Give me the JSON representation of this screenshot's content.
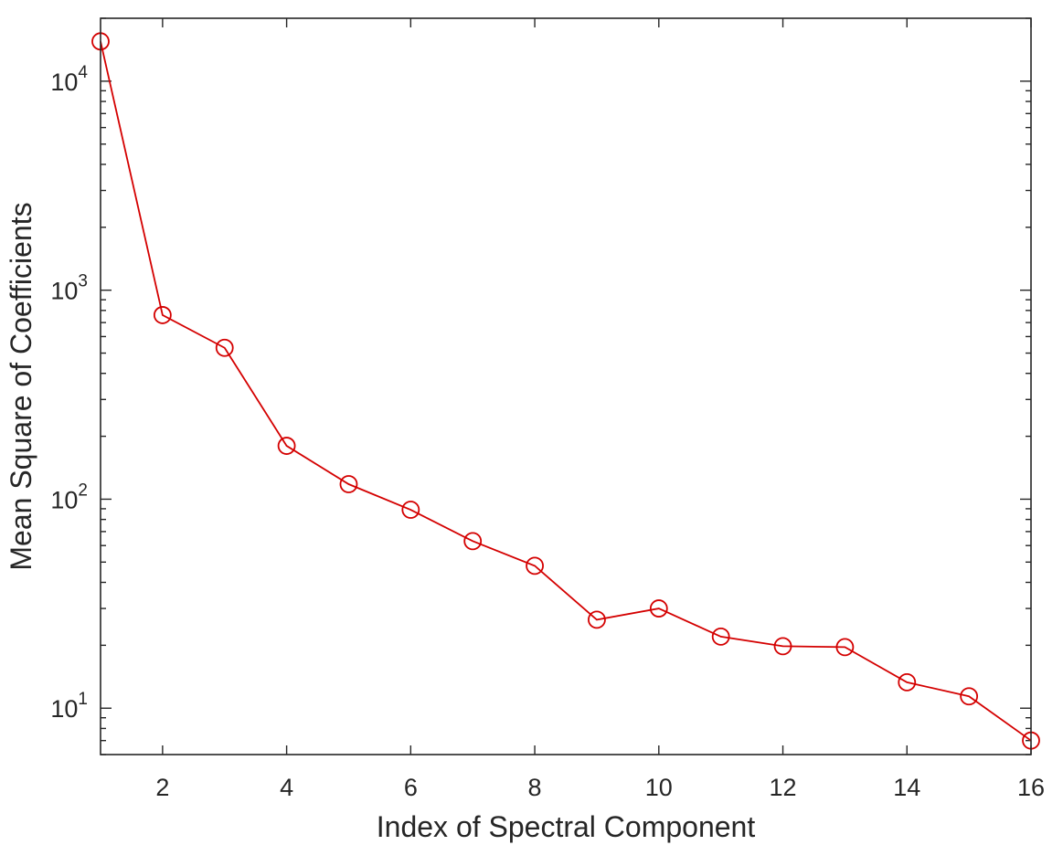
{
  "chart_data": {
    "type": "line",
    "title": "",
    "xlabel": "Index of Spectral Component",
    "ylabel": "Mean Square of Coefficients",
    "xlim": [
      1,
      16
    ],
    "ylim": [
      6,
      20000
    ],
    "yscale": "log",
    "grid": false,
    "box": true,
    "x_ticks": [
      2,
      4,
      6,
      8,
      10,
      12,
      14,
      16
    ],
    "x_tick_labels": [
      "2",
      "4",
      "6",
      "8",
      "10",
      "12",
      "14",
      "16"
    ],
    "y_ticks": [
      10,
      100,
      1000,
      10000
    ],
    "y_tick_labels": [
      {
        "base": "10",
        "exp": "1"
      },
      {
        "base": "10",
        "exp": "2"
      },
      {
        "base": "10",
        "exp": "3"
      },
      {
        "base": "10",
        "exp": "4"
      }
    ],
    "series": [
      {
        "color": "#d40000",
        "marker": "circle",
        "x": [
          1,
          2,
          3,
          4,
          5,
          6,
          7,
          8,
          9,
          10,
          11,
          12,
          13,
          14,
          15,
          16
        ],
        "y": [
          15500,
          760,
          530,
          180,
          118,
          89,
          63,
          48,
          26.5,
          30,
          22,
          19.8,
          19.6,
          13.3,
          11.4,
          7
        ]
      }
    ]
  }
}
